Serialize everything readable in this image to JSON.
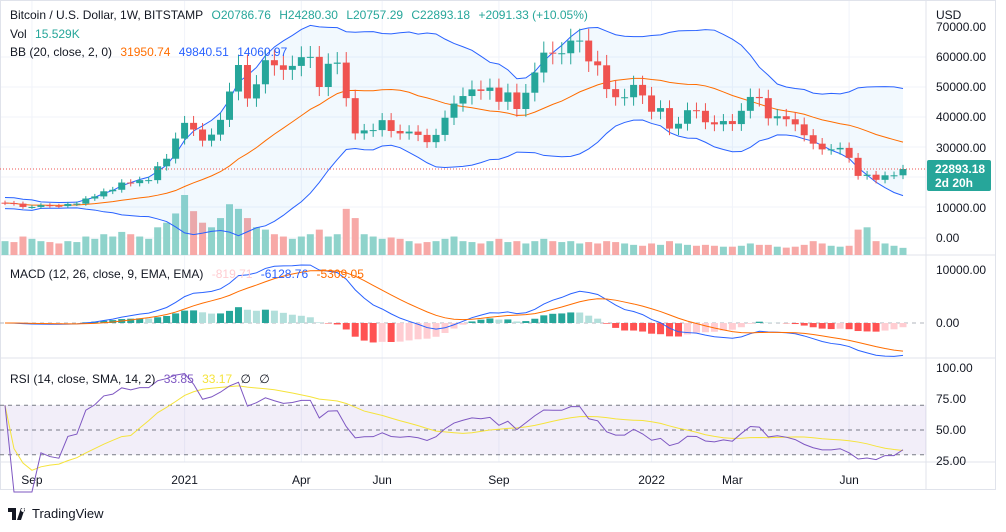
{
  "header": {
    "symbol": "Bitcoin / U.S. Dollar, 1W, BITSTAMP",
    "open": "O20786.76",
    "high": "H24280.30",
    "low": "L20757.29",
    "close": "C22893.18",
    "change": "+2091.33 (+10.05%)"
  },
  "vol_legend": {
    "label": "Vol",
    "value": "15.529K"
  },
  "bb_legend": {
    "label": "BB (20, close, 2, 0)",
    "basis": "31950.74",
    "upper": "49840.51",
    "lower": "14060.97"
  },
  "macd_legend": {
    "label": "MACD (12, 26, close, 9, EMA, EMA)",
    "hist": "-819.71",
    "macd": "-6128.76",
    "signal": "-5309.05"
  },
  "rsi_legend": {
    "label": "RSI (14, close, SMA, 14, 2)",
    "rsi": "33.85",
    "sma": "33.17",
    "v1": "∅",
    "v2": "∅"
  },
  "price_axis": {
    "currency": "USD",
    "ticks": [
      "70000.00",
      "60000.00",
      "50000.00",
      "40000.00",
      "30000.00",
      "10000.00",
      "0.00"
    ]
  },
  "macd_axis": {
    "ticks": [
      "10000.00",
      "0.00"
    ]
  },
  "rsi_axis": {
    "ticks": [
      "100.00",
      "75.00",
      "50.00",
      "25.00"
    ]
  },
  "last_price": {
    "value": "22893.18",
    "countdown": "2d 20h"
  },
  "branding": "TradingView",
  "colors": {
    "up": "#26a69a",
    "down": "#ef5350",
    "bb_basis": "#ff6d00",
    "bb_band": "#2962ff",
    "rsi": "#7e57c2",
    "rsi_sma": "#f5e33b"
  },
  "chart_data": {
    "type": "candlestick",
    "title": "Bitcoin / U.S. Dollar, 1W, BITSTAMP",
    "x_labels": [
      {
        "label": "Sep",
        "index": 3
      },
      {
        "label": "2021",
        "index": 20
      },
      {
        "label": "Apr",
        "index": 33
      },
      {
        "label": "Jun",
        "index": 42
      },
      {
        "label": "Sep",
        "index": 55
      },
      {
        "label": "2022",
        "index": 72
      },
      {
        "label": "Mar",
        "index": 81
      },
      {
        "label": "Jun",
        "index": 94
      }
    ],
    "ylim": [
      0,
      70000
    ],
    "close": [
      11.6,
      11.4,
      10.3,
      10.3,
      10.9,
      10.7,
      10.6,
      11.3,
      11.4,
      13.1,
      13.8,
      15.5,
      16.0,
      18.4,
      18.2,
      19.2,
      19.2,
      23.8,
      26.3,
      33.0,
      38.2,
      36.0,
      32.3,
      34.3,
      39.2,
      48.6,
      57.4,
      46.3,
      51.0,
      59.0,
      57.3,
      55.8,
      57.1,
      60.0,
      60.1,
      50.1,
      57.8,
      58.2,
      46.4,
      34.7,
      35.7,
      35.8,
      39.1,
      35.5,
      34.7,
      35.3,
      34.2,
      31.8,
      34.2,
      39.9,
      44.6,
      47.1,
      49.3,
      48.8,
      49.9,
      45.2,
      48.3,
      42.8,
      48.2,
      54.9,
      61.5,
      61.3,
      61.3,
      65.5,
      65.5,
      58.6,
      57.3,
      49.4,
      46.7,
      46.7,
      50.8,
      47.3,
      41.9,
      43.1,
      36.3,
      37.9,
      42.4,
      42.2,
      38.4,
      37.7,
      38.8,
      37.8,
      42.2,
      46.8,
      46.4,
      39.7,
      40.4,
      39.4,
      37.7,
      34.1,
      31.3,
      29.4,
      29.4,
      29.9,
      26.6,
      20.6,
      21.0,
      19.3,
      20.8,
      20.8,
      22.893
    ],
    "close_unit": "thousand USD",
    "volume_k": [
      30,
      28,
      40,
      35,
      30,
      28,
      25,
      30,
      28,
      40,
      35,
      45,
      40,
      50,
      45,
      40,
      35,
      60,
      70,
      90,
      130,
      95,
      70,
      60,
      80,
      110,
      100,
      80,
      60,
      55,
      45,
      40,
      35,
      40,
      45,
      55,
      40,
      45,
      100,
      80,
      45,
      40,
      35,
      38,
      35,
      30,
      25,
      28,
      30,
      35,
      40,
      30,
      28,
      25,
      30,
      35,
      28,
      30,
      25,
      30,
      35,
      30,
      28,
      30,
      25,
      28,
      25,
      30,
      28,
      25,
      22,
      20,
      25,
      22,
      30,
      25,
      22,
      20,
      22,
      20,
      18,
      18,
      20,
      25,
      22,
      22,
      18,
      16,
      18,
      22,
      30,
      25,
      20,
      18,
      20,
      55,
      60,
      30,
      25,
      20,
      15.5
    ]
  }
}
